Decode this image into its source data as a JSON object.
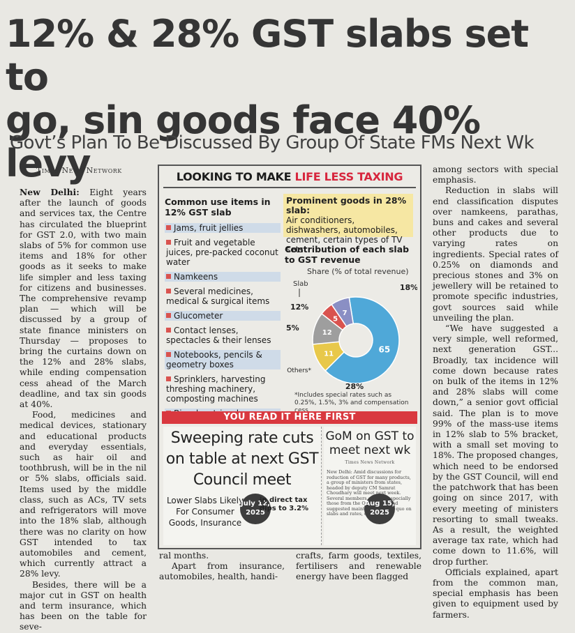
{
  "headline": {
    "line1": "12% & 28% GST slabs set to",
    "line2": "go, sin goods face 40% levy"
  },
  "subhead": "Govt’s Plan To Be Discussed By Group Of State FMs Next Wk",
  "byline": "Times News Network",
  "col1": [
    {
      "dateline": "New Delhi:",
      "text": "Eight years after the launch of goods and services tax, the Centre has circulated the blueprint for GST 2.0, with two main slabs of 5% for common use items and 18% for other goods as it seeks to make life simpler and less taxing for citizens and businesses. The comprehensive revamp plan — which will be discussed by a group of state finance ministers on Thursday — proposes to bring the curtains down on the 12% and 28% slabs, while ending compensation cess ahead of the March deadline, and tax sin goods at 40%."
    },
    {
      "text": "Food, medicines and medical devices, stationary and educational products and everyday essentials, such as hair oil and toothbrush, will be in the nil or 5% slabs, officials said. Items used by the middle class, such as ACs, TV sets and refrigerators will move into the 18% slab, although there was no clarity on how GST intended to tax automobiles and cement, which currently attract a 28% levy."
    },
    {
      "text": "Besides, there will be a major cut in GST on health and term insurance, which has been on the table for seve-"
    }
  ],
  "col2_bottom": [
    "ral months.",
    "Apart from insurance, automobiles, health, handi-"
  ],
  "col3_bottom": "crafts, farm goods, textiles, fertilisers and renewable energy have been flagged",
  "col4": [
    {
      "text": "among sectors with special emphasis."
    },
    {
      "text": "Reduction in slabs will end classification disputes over namkeens, parathas, buns and cakes and several other products due to varying rates on ingredients. Special rates of 0.25% on diamonds and precious stones and 3% on jewellery will be retained to promote specific industries, govt sources said while unveiling the plan."
    },
    {
      "text": "“We have suggested a very simple, well reformed, next generation GST... Broadly, tax incidence will come down because rates on bulk of the items in 12% and 28% slabs will come down,” a senior govt official said. The plan is to move 99% of the mass-use items in 12% slab to 5% bracket, with a small set moving to 18%. The proposed changes, which need to be endorsed by the GST Council, will end the patchwork that has been going on since 2017, with every meeting of ministers resorting to small tweaks. As a result, the weighted average tax rate, which had come down to 11.6%, will drop further."
    },
    {
      "text": "Officials explained, apart from the common man, special emphasis has been given to equipment used by farmers."
    }
  ],
  "box": {
    "title_plain": "LOOKING TO MAKE ",
    "title_highlight": "LIFE LESS TAXING",
    "common_title": "Common use items in 12% GST slab",
    "items": [
      "Jams, fruit jellies",
      "Fruit and vegetable juices, pre-packed coconut water",
      "Namkeens",
      "Several medicines, medical & surgical items",
      "Glucometer",
      "Contact lenses, spectacles & their lenses",
      "Notebooks, pencils & geometry boxes",
      "Sprinklers, harvesting threshing machinery, composting machines",
      "Bicycles, tricycles"
    ],
    "prominent_title": "Prominent goods in 28% slab:",
    "prominent_text": "Air conditioners, dishwashers, automobiles, cement, certain types of TV sets",
    "contrib_title": "Contribution of each slab to GST revenue",
    "share_label": "Share (% of total revenue)",
    "footnote": "*Includes special rates such as 0.25%, 1.5%, 3% and compensation cess",
    "ribbon": "YOU READ IT HERE FIRST",
    "clip1_headline": "Sweeping rate cuts on table at next GST Council meet",
    "clip1_sub": "Lower Slabs Likely For Consumer Goods, Insurance",
    "clip1_date_line1": "July 12,",
    "clip1_date_line2": "2025",
    "clip1_aside": "in direct tax dips to 3.2%",
    "clip2_headline": "GoM on GST to meet next wk",
    "clip2_network": "Times News Network",
    "clip2_date_line1": "Aug 15,",
    "clip2_date_line2": "2025",
    "clip2_text": "New Delhi: Amid discussions for reduction of GST for many products, a group of ministers from states, headed by deputy CM Samrat Choudhary will meet next week. Several members of GoM, especially those from the Opposition, had suggested maintaining status quo on slabs and rates, citing"
  },
  "chart_data": {
    "type": "pie",
    "title": "Contribution of each slab to GST revenue",
    "subtitle": "Share (% of total revenue)",
    "categories": [
      "18%",
      "28%",
      "Others*",
      "12%",
      "5%"
    ],
    "values": [
      65,
      11,
      12,
      5,
      7
    ],
    "slab_label": "Slab",
    "colors": [
      "#4fa8d8",
      "#e8c84a",
      "#9e9e9e",
      "#d9534f",
      "#8a8fc4"
    ]
  }
}
